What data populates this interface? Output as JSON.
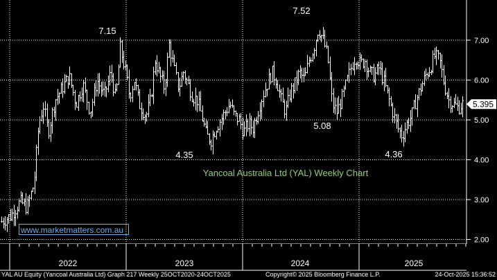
{
  "watermark": "www.marketmatters.com.au",
  "footer": {
    "left": "YAL AU Equity (Yancoal Australia Ltd) Graph 217 Weekly 25OCT2020-24OCT2025",
    "center": "Copyright© 2025 Bloomberg Finance L.P.",
    "right": "24-Oct-2025 15:36:52"
  },
  "colors": {
    "background": "#000000",
    "bars": "#ffffff",
    "title": "#8fd16f",
    "grid": "#ffffff",
    "watermark": "#6ab0e8"
  },
  "chart_data": {
    "type": "bar",
    "subtype": "weekly-ohlc",
    "title": "Yancoal Australia Ltd (YAL) Weekly Chart",
    "ylim": [
      1.95,
      7.7
    ],
    "y_ticks": [
      "2.00",
      "3.00",
      "4.00",
      "5.00",
      "6.00",
      "7.00"
    ],
    "x_tick_labels": [
      "2022",
      "2023",
      "2024",
      "2025"
    ],
    "last_price": "5.395",
    "annotations": [
      {
        "text": "7.15",
        "week": 63,
        "price": 7.15
      },
      {
        "text": "7.52",
        "week": 172,
        "price": 7.52
      },
      {
        "text": "4.35",
        "week": 105,
        "price": 4.35
      },
      {
        "text": "5.08",
        "week": 186,
        "price": 5.08
      },
      {
        "text": "4.36",
        "week": 227,
        "price": 4.36
      }
    ],
    "x_range_weeks": [
      0,
      260
    ],
    "year_boundaries": [
      {
        "label": "2022",
        "start_week": 10,
        "end_week": 62
      },
      {
        "label": "2023",
        "start_week": 62,
        "end_week": 114
      },
      {
        "label": "2024",
        "start_week": 114,
        "end_week": 166
      },
      {
        "label": "2025",
        "start_week": 166,
        "end_week": 218
      }
    ],
    "grid": true,
    "price_path_weekly_close_anchors": [
      [
        0,
        2.45
      ],
      [
        4,
        2.6
      ],
      [
        8,
        2.95
      ],
      [
        11,
        2.8
      ],
      [
        14,
        3.4
      ],
      [
        16,
        4.9
      ],
      [
        18,
        5.35
      ],
      [
        20,
        4.7
      ],
      [
        23,
        5.5
      ],
      [
        26,
        5.8
      ],
      [
        29,
        6.1
      ],
      [
        32,
        5.4
      ],
      [
        35,
        5.9
      ],
      [
        38,
        5.2
      ],
      [
        41,
        6.0
      ],
      [
        44,
        5.6
      ],
      [
        47,
        6.2
      ],
      [
        49,
        5.5
      ],
      [
        51,
        6.8
      ],
      [
        53,
        6.3
      ],
      [
        55,
        5.6
      ],
      [
        57,
        6.0
      ],
      [
        59,
        5.4
      ],
      [
        62,
        5.1
      ],
      [
        64,
        5.5
      ],
      [
        66,
        6.5
      ],
      [
        68,
        6.1
      ],
      [
        70,
        5.8
      ],
      [
        72,
        6.9
      ],
      [
        74,
        6.3
      ],
      [
        76,
        5.8
      ],
      [
        78,
        6.2
      ],
      [
        80,
        5.9
      ],
      [
        82,
        5.6
      ],
      [
        84,
        5.5
      ],
      [
        86,
        5.1
      ],
      [
        88,
        4.6
      ],
      [
        90,
        4.5
      ],
      [
        92,
        4.8
      ],
      [
        94,
        5.0
      ],
      [
        96,
        5.2
      ],
      [
        98,
        5.4
      ],
      [
        100,
        5.1
      ],
      [
        102,
        5.0
      ],
      [
        104,
        4.7
      ],
      [
        106,
        4.9
      ],
      [
        108,
        4.8
      ],
      [
        110,
        5.2
      ],
      [
        112,
        5.6
      ],
      [
        114,
        5.9
      ],
      [
        116,
        6.2
      ],
      [
        118,
        6.0
      ],
      [
        120,
        5.5
      ],
      [
        122,
        5.2
      ],
      [
        124,
        5.7
      ],
      [
        126,
        5.9
      ],
      [
        128,
        6.2
      ],
      [
        130,
        6.0
      ],
      [
        132,
        6.5
      ],
      [
        134,
        6.8
      ],
      [
        136,
        7.3
      ],
      [
        138,
        7.0
      ],
      [
        140,
        6.6
      ],
      [
        142,
        5.4
      ],
      [
        144,
        5.2
      ],
      [
        146,
        5.5
      ],
      [
        148,
        5.9
      ],
      [
        150,
        6.3
      ],
      [
        152,
        6.6
      ],
      [
        154,
        6.4
      ],
      [
        156,
        6.5
      ],
      [
        158,
        6.2
      ],
      [
        160,
        6.1
      ],
      [
        162,
        6.3
      ],
      [
        164,
        6.0
      ],
      [
        166,
        5.6
      ],
      [
        168,
        5.2
      ],
      [
        170,
        4.8
      ],
      [
        172,
        4.6
      ],
      [
        174,
        4.9
      ],
      [
        176,
        5.1
      ],
      [
        178,
        5.5
      ],
      [
        180,
        5.8
      ],
      [
        182,
        6.1
      ],
      [
        184,
        6.3
      ],
      [
        186,
        6.6
      ],
      [
        188,
        6.5
      ],
      [
        190,
        5.9
      ],
      [
        192,
        5.5
      ],
      [
        194,
        5.4
      ],
      [
        196,
        5.3
      ],
      [
        198,
        5.4
      ]
    ]
  }
}
